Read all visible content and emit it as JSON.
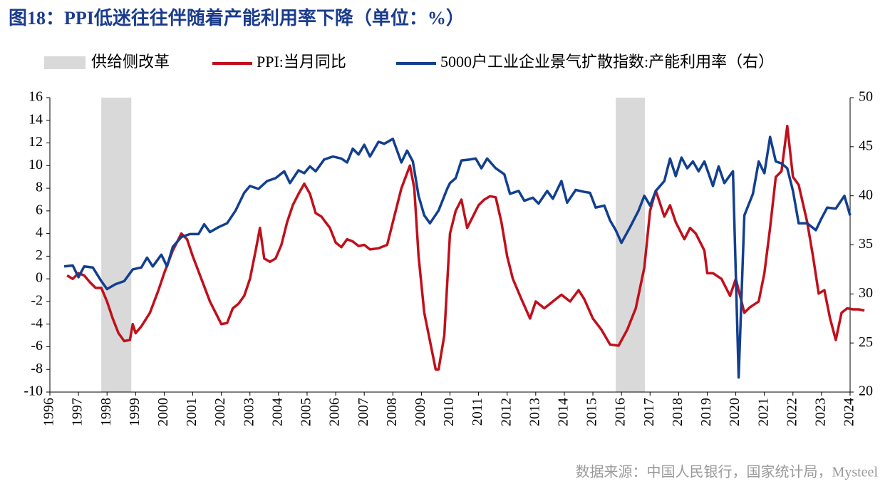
{
  "chart_data": {
    "type": "line",
    "title": "图18：PPI低迷往往伴随着产能利用率下降（单位：%）",
    "source": "数据来源：中国人民银行，国家统计局，Mysteel",
    "regions": {
      "name": "供给侧改革",
      "color": "#d9d9d9",
      "spans": [
        [
          1997.8,
          1998.85
        ],
        [
          2015.8,
          2016.82
        ]
      ]
    },
    "xlim": [
      1996,
      2024
    ],
    "xticks": [
      1996,
      1997,
      1998,
      1999,
      2000,
      2001,
      2002,
      2003,
      2004,
      2005,
      2006,
      2007,
      2008,
      2009,
      2010,
      2011,
      2012,
      2013,
      2014,
      2015,
      2016,
      2017,
      2018,
      2019,
      2020,
      2021,
      2022,
      2023,
      2024
    ],
    "ylim": [
      -10,
      16
    ],
    "yticks": [
      -10,
      -8,
      -6,
      -4,
      -2,
      0,
      2,
      4,
      6,
      8,
      10,
      12,
      14,
      16
    ],
    "y2lim": [
      20,
      50
    ],
    "y2ticks": [
      20,
      25,
      30,
      35,
      40,
      45,
      50
    ],
    "series": [
      {
        "name": "PPI:当月同比",
        "color": "#c0101b",
        "x": [
          1996.6,
          1996.8,
          1997.0,
          1997.2,
          1997.4,
          1997.6,
          1997.8,
          1998.0,
          1998.2,
          1998.4,
          1998.6,
          1998.8,
          1998.9,
          1999.0,
          1999.2,
          1999.5,
          1999.8,
          2000.0,
          2000.3,
          2000.5,
          2000.6,
          2000.8,
          2001.0,
          2001.3,
          2001.6,
          2001.8,
          2002.0,
          2002.2,
          2002.4,
          2002.6,
          2002.8,
          2003.0,
          2003.2,
          2003.35,
          2003.5,
          2003.7,
          2003.9,
          2004.1,
          2004.3,
          2004.5,
          2004.7,
          2004.9,
          2005.1,
          2005.3,
          2005.5,
          2005.8,
          2006.0,
          2006.2,
          2006.4,
          2006.6,
          2006.8,
          2007.0,
          2007.2,
          2007.5,
          2007.8,
          2008.0,
          2008.3,
          2008.6,
          2008.75,
          2008.9,
          2009.1,
          2009.3,
          2009.5,
          2009.6,
          2009.8,
          2010.0,
          2010.2,
          2010.4,
          2010.6,
          2010.8,
          2011.0,
          2011.2,
          2011.4,
          2011.6,
          2011.8,
          2012.0,
          2012.2,
          2012.5,
          2012.8,
          2013.0,
          2013.3,
          2013.6,
          2013.9,
          2014.2,
          2014.5,
          2014.7,
          2015.0,
          2015.3,
          2015.6,
          2015.9,
          2016.2,
          2016.5,
          2016.8,
          2017.0,
          2017.2,
          2017.5,
          2017.7,
          2017.9,
          2018.2,
          2018.4,
          2018.6,
          2018.9,
          2019.0,
          2019.2,
          2019.5,
          2019.8,
          2020.0,
          2020.3,
          2020.5,
          2020.8,
          2021.0,
          2021.2,
          2021.4,
          2021.6,
          2021.8,
          2022.0,
          2022.2,
          2022.5,
          2022.7,
          2022.9,
          2023.1,
          2023.3,
          2023.5,
          2023.7,
          2023.9,
          2024.1,
          2024.3,
          2024.5
        ],
        "values": [
          0.3,
          0,
          0.5,
          0.3,
          -0.3,
          -0.8,
          -0.8,
          -2,
          -3.5,
          -4.8,
          -5.5,
          -5.4,
          -4,
          -4.8,
          -4.2,
          -3,
          -1,
          0.5,
          2.5,
          3.5,
          4,
          3.5,
          2,
          0,
          -2,
          -3,
          -4,
          -3.9,
          -2.6,
          -2.2,
          -1.5,
          0,
          2.5,
          4.5,
          1.8,
          1.5,
          1.8,
          3,
          5,
          6.5,
          7.5,
          8.4,
          7.5,
          5.8,
          5.5,
          4.5,
          3.2,
          2.8,
          3.5,
          3.3,
          2.9,
          3,
          2.6,
          2.7,
          3,
          5,
          8,
          10,
          8,
          2,
          -3,
          -5.5,
          -8,
          -8,
          -5,
          4,
          6,
          7,
          4.5,
          5.5,
          6.5,
          7,
          7.3,
          7.2,
          5,
          2,
          0,
          -1.8,
          -3.5,
          -2,
          -2.6,
          -2,
          -1.4,
          -2,
          -1,
          -1.8,
          -3.5,
          -4.5,
          -5.8,
          -5.9,
          -4.5,
          -2.6,
          1,
          6,
          7.8,
          5.5,
          6.5,
          5,
          3.5,
          4.5,
          4,
          2.5,
          0.5,
          0.5,
          0,
          -1.5,
          0,
          -3,
          -2.5,
          -2,
          0.5,
          4.5,
          9,
          9.5,
          13.5,
          9,
          8.3,
          5,
          2,
          -1.3,
          -1,
          -3.5,
          -5.4,
          -3,
          -2.6,
          -2.7,
          -2.7,
          -2.8
        ]
      },
      {
        "name": "5000户工业企业景气扩散指数:产能利用率（右）",
        "color": "#123f8f",
        "axis": "y2",
        "x": [
          1996.5,
          1996.8,
          1997.0,
          1997.2,
          1997.5,
          1997.8,
          1998.0,
          1998.3,
          1998.6,
          1998.9,
          1999.2,
          1999.4,
          1999.6,
          1999.9,
          2000.1,
          2000.3,
          2000.6,
          2000.9,
          2001.2,
          2001.4,
          2001.6,
          2001.9,
          2002.2,
          2002.5,
          2002.8,
          2003.0,
          2003.3,
          2003.6,
          2003.9,
          2004.2,
          2004.4,
          2004.7,
          2004.9,
          2005.1,
          2005.3,
          2005.6,
          2005.9,
          2006.2,
          2006.4,
          2006.6,
          2006.8,
          2007.0,
          2007.2,
          2007.5,
          2007.7,
          2008.0,
          2008.3,
          2008.5,
          2008.7,
          2008.9,
          2009.1,
          2009.3,
          2009.6,
          2009.9,
          2010.0,
          2010.2,
          2010.4,
          2010.7,
          2010.9,
          2011.1,
          2011.3,
          2011.6,
          2011.9,
          2012.1,
          2012.4,
          2012.6,
          2012.9,
          2013.1,
          2013.4,
          2013.6,
          2013.9,
          2014.1,
          2014.4,
          2014.7,
          2014.9,
          2015.1,
          2015.4,
          2015.6,
          2015.8,
          2016.0,
          2016.3,
          2016.6,
          2016.8,
          2017.0,
          2017.2,
          2017.5,
          2017.7,
          2017.9,
          2018.1,
          2018.3,
          2018.5,
          2018.7,
          2018.9,
          2019.2,
          2019.4,
          2019.6,
          2019.9,
          2020.1,
          2020.3,
          2020.6,
          2020.8,
          2021.0,
          2021.2,
          2021.4,
          2021.6,
          2021.8,
          2022.0,
          2022.2,
          2022.5,
          2022.8,
          2023.0,
          2023.2,
          2023.5,
          2023.8,
          2024.0
        ],
        "values": [
          32.8,
          32.9,
          31.7,
          32.8,
          32.7,
          31.3,
          30.5,
          31,
          31.3,
          32.5,
          32.7,
          33.7,
          32.8,
          34,
          32.8,
          34.8,
          35.8,
          36.1,
          36.1,
          37.1,
          36.3,
          36.8,
          37.2,
          38.5,
          40.3,
          41,
          40.7,
          41.5,
          41.8,
          42.5,
          41.3,
          42.6,
          42.3,
          43,
          42.5,
          43.7,
          44,
          43.8,
          43.4,
          44.8,
          44.2,
          45.2,
          44,
          45.5,
          45.3,
          45.8,
          43.4,
          44.6,
          43.5,
          40,
          38,
          37.2,
          38.5,
          40.7,
          41.3,
          41.8,
          43.6,
          43.7,
          43.8,
          42.8,
          43.8,
          42.8,
          42.2,
          40.2,
          40.5,
          39.5,
          39.8,
          39.2,
          40.5,
          39.7,
          41.5,
          39.3,
          40.6,
          40.4,
          40.3,
          38.8,
          39,
          37.5,
          36.5,
          35.2,
          36.8,
          38.5,
          40,
          39,
          40.5,
          41.5,
          43.8,
          42,
          43.9,
          42.8,
          43.5,
          42.5,
          43.5,
          41,
          43,
          41.3,
          42.5,
          21.5,
          38,
          40.2,
          43.5,
          42.3,
          46,
          43.5,
          43.3,
          42.8,
          40.5,
          37.2,
          37.2,
          36.5,
          37.7,
          38.8,
          38.7,
          40,
          38
        ]
      }
    ]
  }
}
